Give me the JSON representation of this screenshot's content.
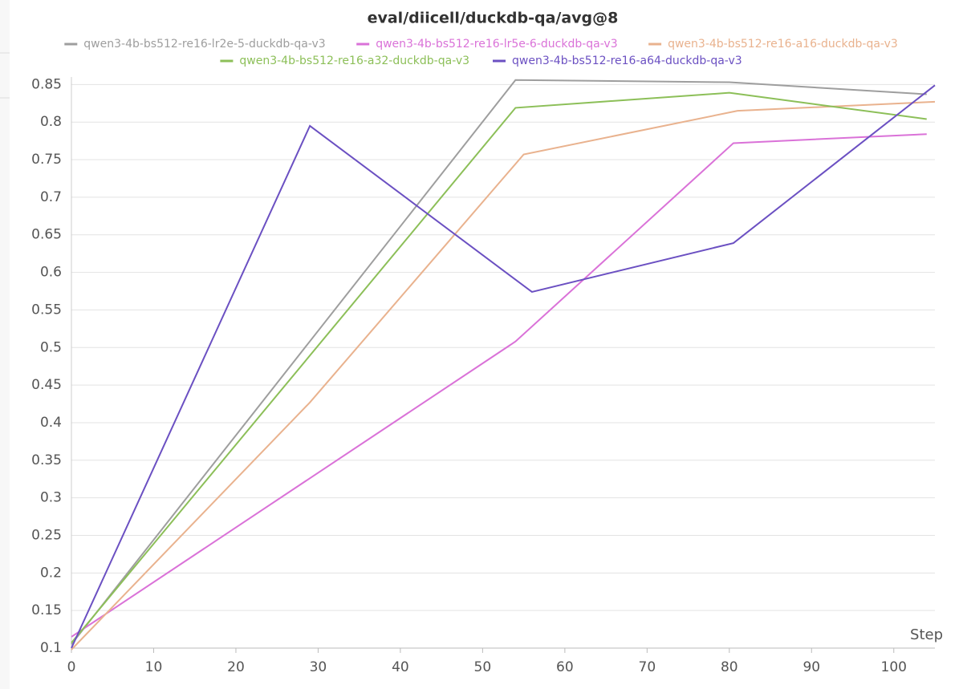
{
  "chart_data": {
    "type": "line",
    "title": "eval/diicell/duckdb-qa/avg@8",
    "xlabel": "Step",
    "xlim": [
      0,
      105
    ],
    "ylim": [
      0.1,
      0.86
    ],
    "xticks": [
      0,
      10,
      20,
      30,
      40,
      50,
      60,
      70,
      80,
      90,
      100
    ],
    "yticks": [
      0.1,
      0.15,
      0.2,
      0.25,
      0.3,
      0.35,
      0.4,
      0.45,
      0.5,
      0.55,
      0.6,
      0.65,
      0.7,
      0.75,
      0.8,
      0.85
    ],
    "grid": true,
    "series": [
      {
        "name": "qwen3-4b-bs512-re16-lr2e-5-duckdb-qa-v3",
        "color": "#9e9e9e",
        "x": [
          0,
          54,
          80,
          104
        ],
        "values": [
          0.105,
          0.856,
          0.853,
          0.837
        ]
      },
      {
        "name": "qwen3-4b-bs512-re16-lr5e-6-duckdb-qa-v3",
        "color": "#da72d8",
        "x": [
          0,
          54,
          80.5,
          104
        ],
        "values": [
          0.115,
          0.508,
          0.772,
          0.784
        ]
      },
      {
        "name": "qwen3-4b-bs512-re16-a16-duckdb-qa-v3",
        "color": "#e9b28e",
        "x": [
          0,
          29,
          55,
          81,
          105
        ],
        "values": [
          0.098,
          0.427,
          0.757,
          0.815,
          0.827
        ]
      },
      {
        "name": "qwen3-4b-bs512-re16-a32-duckdb-qa-v3",
        "color": "#8cbf58",
        "x": [
          0,
          54,
          80,
          104
        ],
        "values": [
          0.107,
          0.819,
          0.839,
          0.804
        ]
      },
      {
        "name": "qwen3-4b-bs512-re16-a64-duckdb-qa-v3",
        "color": "#6b50c2",
        "x": [
          0,
          29,
          56,
          80.5,
          105
        ],
        "values": [
          0.1,
          0.795,
          0.574,
          0.639,
          0.849
        ]
      }
    ]
  }
}
